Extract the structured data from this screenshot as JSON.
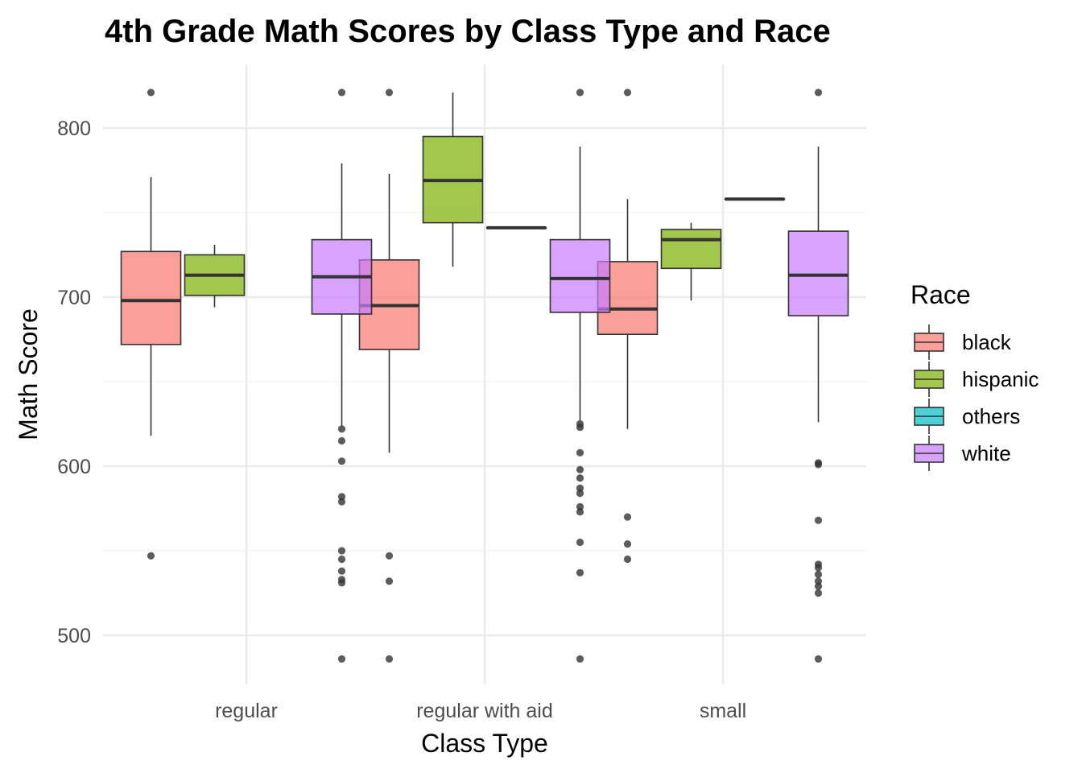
{
  "chart_data": {
    "type": "boxplot",
    "title": "4th Grade Math Scores by Class Type and Race",
    "xlabel": "Class Type",
    "ylabel": "Math Score",
    "categories": [
      "regular",
      "regular with aid",
      "small"
    ],
    "ylim": [
      470,
      840
    ],
    "y_ticks": [
      500,
      600,
      700,
      800
    ],
    "grid": true,
    "legend": {
      "title": "Race",
      "position": "right"
    },
    "series": [
      {
        "name": "black",
        "color": "#F8766D",
        "values": [
          {
            "category": "regular",
            "whisker_low": 618,
            "q1": 672,
            "median": 698,
            "q3": 727,
            "whisker_high": 771,
            "outliers": [
              821,
              547
            ]
          },
          {
            "category": "regular with aid",
            "whisker_low": 608,
            "q1": 669,
            "median": 695,
            "q3": 722,
            "whisker_high": 773,
            "outliers": [
              821,
              547,
              532,
              486
            ]
          },
          {
            "category": "small",
            "whisker_low": 622,
            "q1": 678,
            "median": 693,
            "q3": 721,
            "whisker_high": 758,
            "outliers": [
              821,
              570,
              554,
              545
            ]
          }
        ]
      },
      {
        "name": "hispanic",
        "color": "#7CAE00",
        "values": [
          {
            "category": "regular",
            "whisker_low": 694,
            "q1": 701,
            "median": 713,
            "q3": 725,
            "whisker_high": 731,
            "outliers": []
          },
          {
            "category": "regular with aid",
            "whisker_low": 718,
            "q1": 744,
            "median": 769,
            "q3": 795,
            "whisker_high": 821,
            "outliers": []
          },
          {
            "category": "small",
            "whisker_low": 698,
            "q1": 717,
            "median": 734,
            "q3": 740,
            "whisker_high": 744,
            "outliers": []
          }
        ]
      },
      {
        "name": "others",
        "color": "#00BFC4",
        "values": [
          {
            "category": "regular with aid",
            "whisker_low": 741,
            "q1": 741,
            "median": 741,
            "q3": 741,
            "whisker_high": 741,
            "outliers": []
          },
          {
            "category": "small",
            "whisker_low": 758,
            "q1": 758,
            "median": 758,
            "q3": 758,
            "whisker_high": 758,
            "outliers": []
          }
        ]
      },
      {
        "name": "white",
        "color": "#C77CFF",
        "values": [
          {
            "category": "regular",
            "whisker_low": 624,
            "q1": 690,
            "median": 712,
            "q3": 734,
            "whisker_high": 779,
            "outliers": [
              821,
              622,
              615,
              603,
              582,
              579,
              550,
              545,
              538,
              533,
              531,
              486
            ]
          },
          {
            "category": "regular with aid",
            "whisker_low": 627,
            "q1": 691,
            "median": 711,
            "q3": 734,
            "whisker_high": 789,
            "outliers": [
              821,
              625,
              623,
              608,
              598,
              593,
              587,
              584,
              576,
              573,
              555,
              537,
              486
            ]
          },
          {
            "category": "small",
            "whisker_low": 626,
            "q1": 689,
            "median": 713,
            "q3": 739,
            "whisker_high": 789,
            "outliers": [
              821,
              602,
              601,
              568,
              542,
              540,
              536,
              532,
              529,
              525,
              486
            ]
          }
        ]
      }
    ]
  }
}
